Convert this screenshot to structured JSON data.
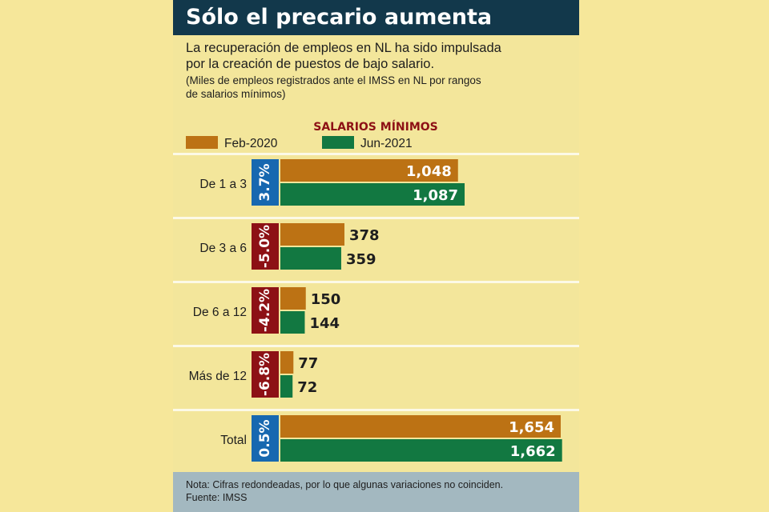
{
  "header": {
    "title": "Sólo el precario aumenta"
  },
  "intro": {
    "line1": "La recuperación de empleos en NL ha sido impulsada",
    "line2": "por la creación de puestos de bajo salario.",
    "sub1": "(Miles de empleos registrados ante el IMSS en NL por rangos",
    "sub2": "de salarios mínimos)"
  },
  "chart_data": {
    "type": "bar",
    "title": "SALARIOS MÍNIMOS",
    "categories": [
      "De 1 a 3",
      "De 3 a 6",
      "De 6 a 12",
      "Más de 12",
      "Total"
    ],
    "series": [
      {
        "name": "Feb-2020",
        "values": [
          1048,
          378,
          150,
          77,
          1654
        ],
        "labels": [
          "1,048",
          "378",
          "150",
          "77",
          "1,654"
        ]
      },
      {
        "name": "Jun-2021",
        "values": [
          1087,
          359,
          144,
          72,
          1662
        ],
        "labels": [
          "1,087",
          "359",
          "144",
          "72",
          "1,662"
        ]
      }
    ],
    "changes": [
      "3.7%",
      "-5.0%",
      "-4.2%",
      "-6.8%",
      "0.5%"
    ],
    "colors": {
      "feb": "#bc7214",
      "jun": "#127841",
      "positive": "#1768b0",
      "negative": "#8d1115",
      "title": "#8d1115"
    },
    "legend_position": "top"
  },
  "footer": {
    "note": "Nota: Cifras redondeadas, por lo que algunas variaciones no coinciden.",
    "source": "Fuente: IMSS"
  }
}
